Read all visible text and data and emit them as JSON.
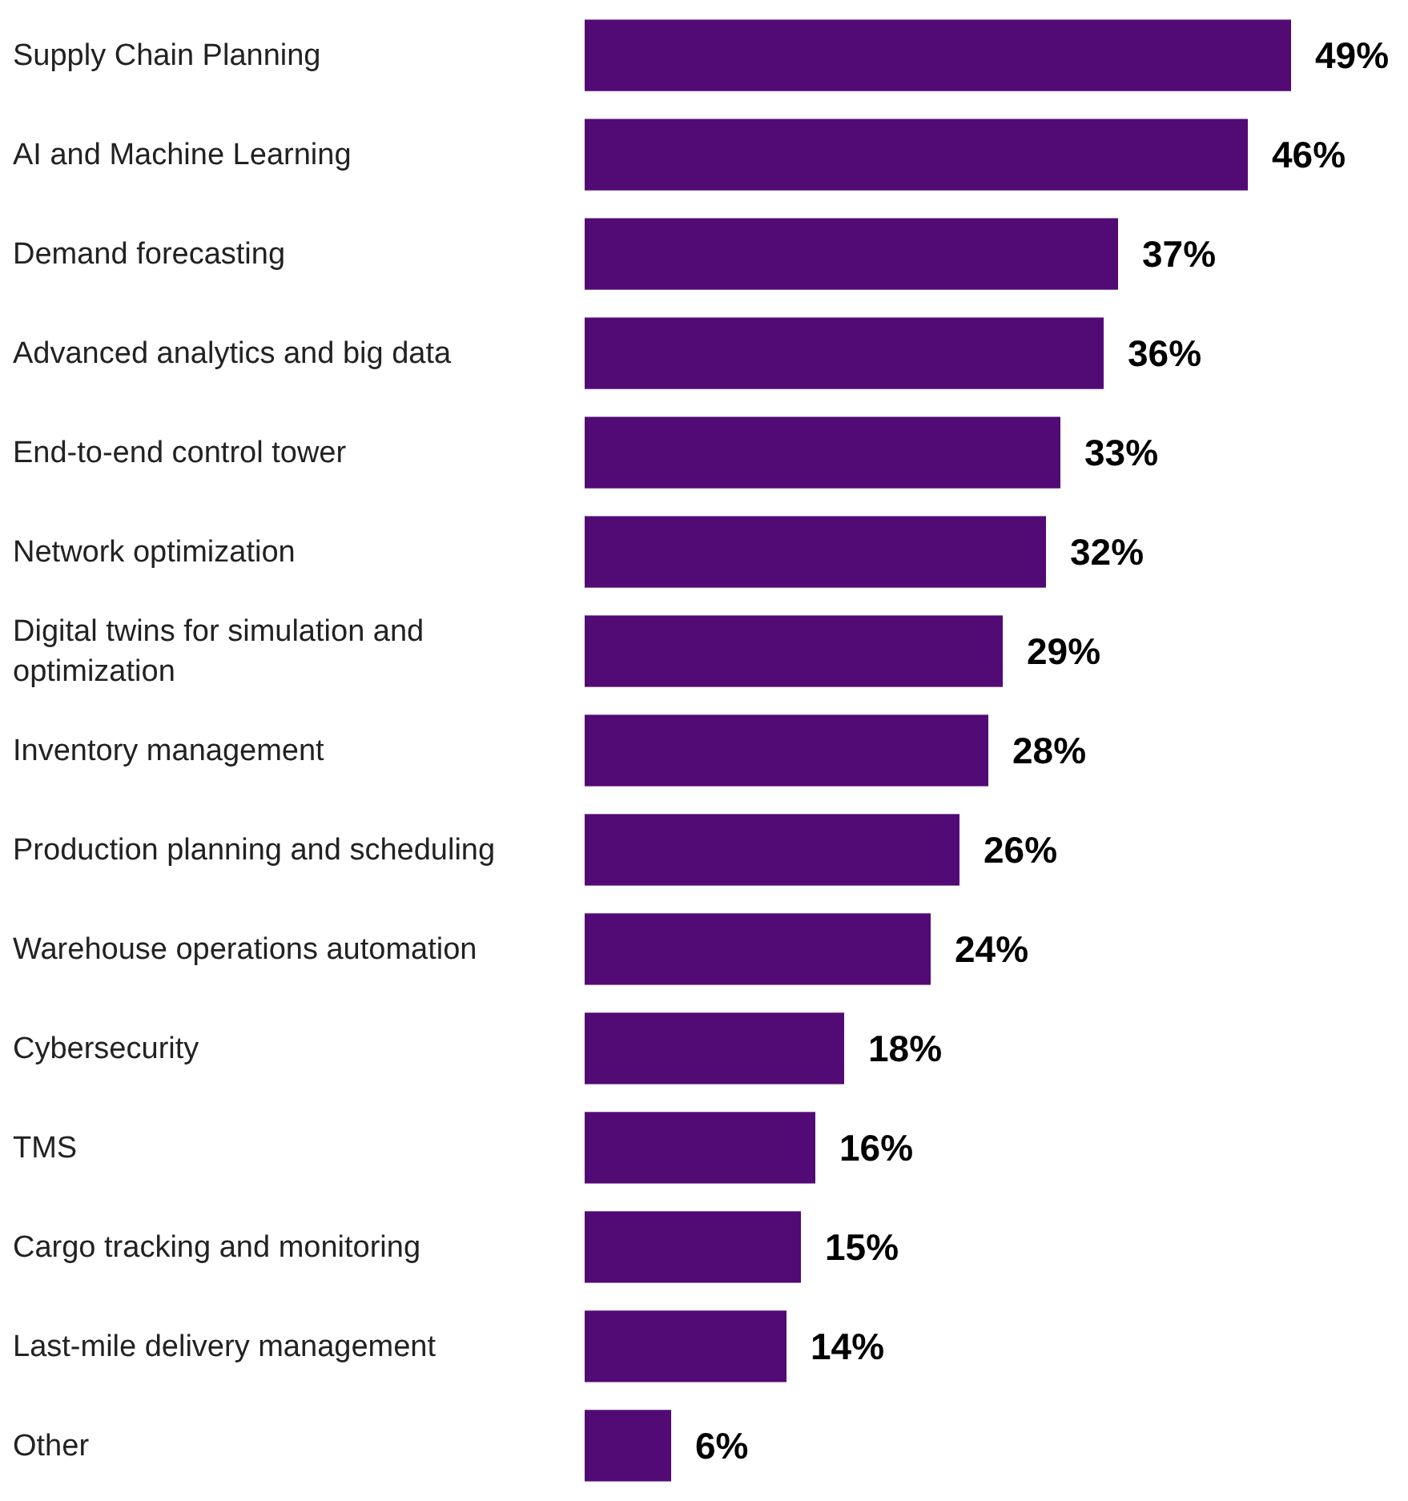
{
  "chart_data": {
    "type": "bar",
    "orientation": "horizontal",
    "color": "#520a75",
    "categories": [
      "Supply Chain Planning",
      "AI and Machine Learning",
      "Demand forecasting",
      "Advanced analytics and big data",
      "End-to-end control tower",
      "Network optimization",
      "Digital twins for simulation and optimization",
      "Inventory management",
      "Production planning and scheduling",
      "Warehouse operations automation",
      "Cybersecurity",
      "TMS",
      "Cargo tracking and monitoring",
      "Last-mile delivery management",
      "Other"
    ],
    "values": [
      49,
      46,
      37,
      36,
      33,
      32,
      29,
      28,
      26,
      24,
      18,
      16,
      15,
      14,
      6
    ],
    "value_labels": [
      "49%",
      "46%",
      "37%",
      "36%",
      "33%",
      "32%",
      "29%",
      "28%",
      "26%",
      "24%",
      "18%",
      "16%",
      "15%",
      "14%",
      "6%"
    ]
  }
}
